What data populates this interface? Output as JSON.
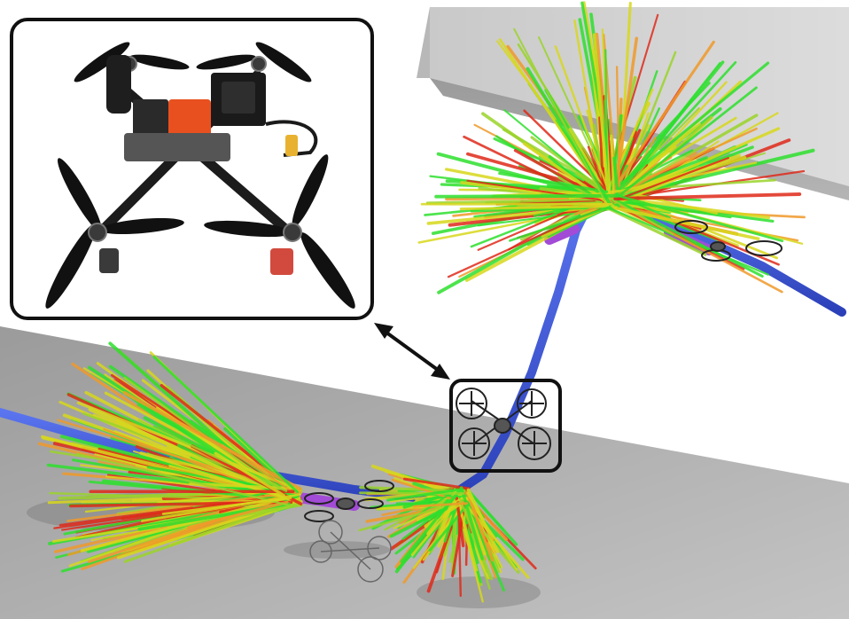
{
  "scene": {
    "subject": "quadrotor-trajectory-rendering",
    "colors": {
      "background": "#ffffff",
      "floor": "#a9a9a9",
      "wall": "#c4c4c4",
      "trajectory": "#3a55d4",
      "highlight": "#a24bd6",
      "inset_border": "#111111",
      "ray_low": "#2ee02e",
      "ray_mid": "#d8d81c",
      "ray_high": "#e02a1a"
    },
    "icons": [
      "drone-photo",
      "drone-icon",
      "double-arrow-icon"
    ]
  }
}
